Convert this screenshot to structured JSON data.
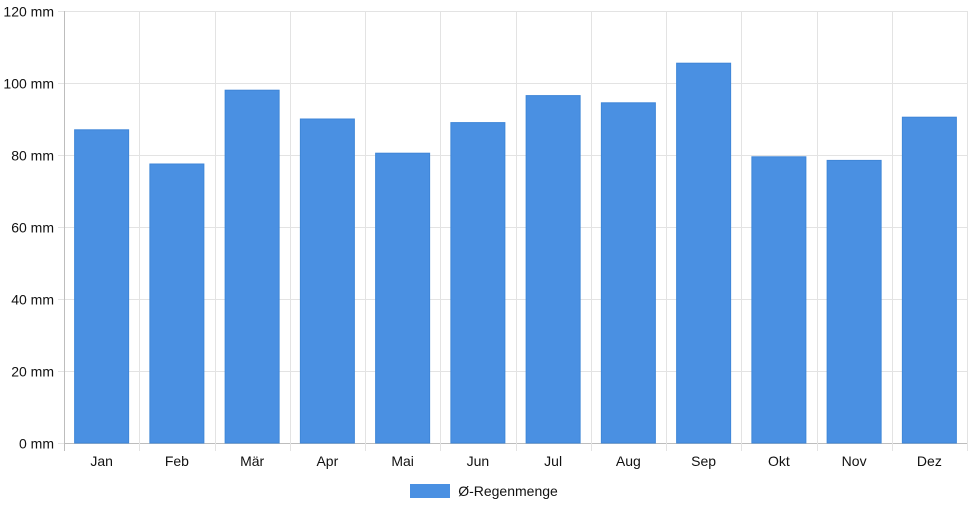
{
  "chart_data": {
    "type": "bar",
    "categories": [
      "Jan",
      "Feb",
      "Mär",
      "Apr",
      "Mai",
      "Jun",
      "Jul",
      "Aug",
      "Sep",
      "Okt",
      "Nov",
      "Dez"
    ],
    "series": [
      {
        "name": "Ø-Regenmenge",
        "values": [
          87,
          77.5,
          98,
          90,
          80.5,
          89,
          96.5,
          94.5,
          105.5,
          79.5,
          78.5,
          90.5
        ]
      }
    ],
    "ylim": [
      0,
      120
    ],
    "yticks": [
      0,
      20,
      40,
      60,
      80,
      100,
      120
    ],
    "ytick_suffix": " mm",
    "grid": true,
    "legend": "bottom-center",
    "bar_color": "#4a90e2"
  }
}
